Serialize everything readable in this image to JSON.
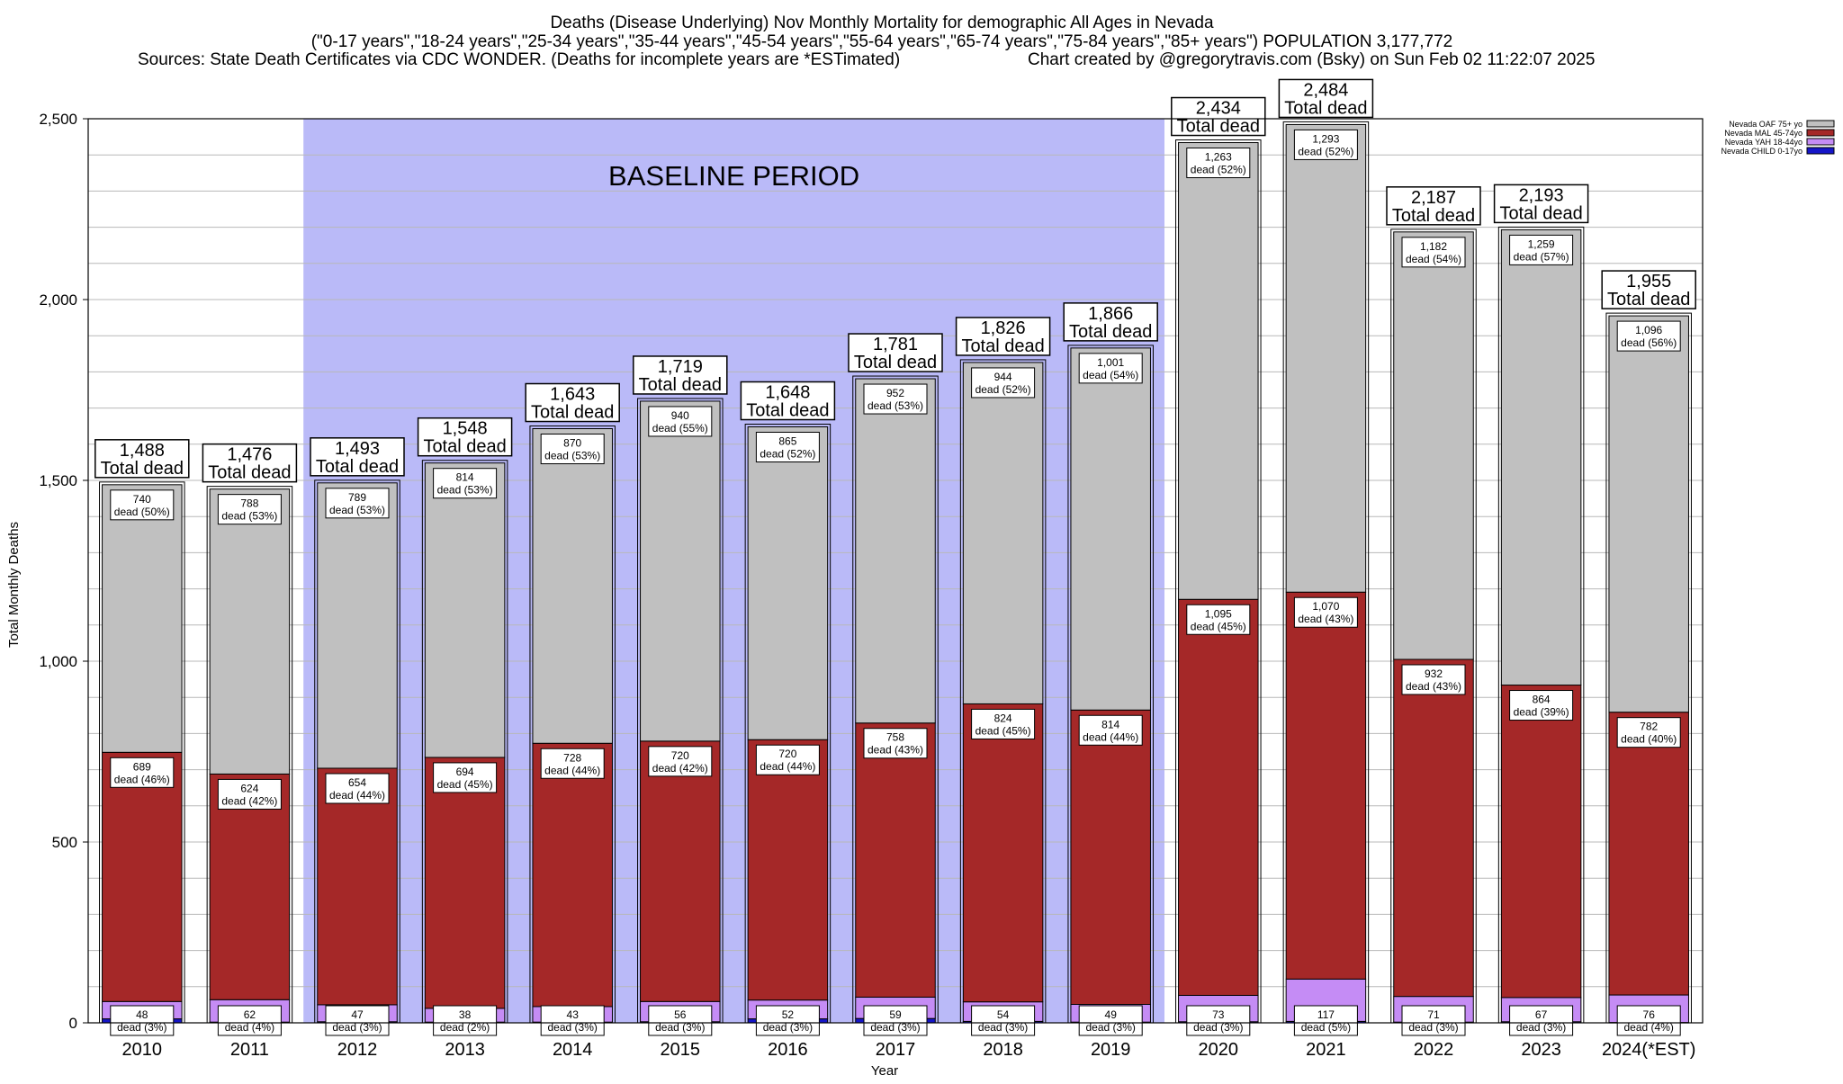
{
  "chart_data": {
    "type": "bar",
    "stacked": true,
    "title": "Deaths (Disease Underlying) Nov Monthly Mortality for demographic All Ages in Nevada",
    "subtitle": "(\"0-17 years\",\"18-24 years\",\"25-34 years\",\"35-44 years\",\"45-54 years\",\"55-64 years\",\"65-74 years\",\"75-84 years\",\"85+ years\") POPULATION 3,177,772",
    "sources": "Sources: State Death Certificates via CDC WONDER. (Deaths for incomplete years are *ESTimated)",
    "credit": "Chart created by @gregorytravis.com (Bsky) on Sun Feb 02 11:22:07 2025",
    "xlabel": "Year",
    "ylabel": "Total Monthly Deaths",
    "ylim": [
      0,
      2500
    ],
    "yticks": [
      0,
      500,
      1000,
      1500,
      2000,
      2500
    ],
    "ytick_labels": [
      "0",
      "500",
      "1,000",
      "1,500",
      "2,000",
      "2,500"
    ],
    "grid": true,
    "legend_position": "top-right",
    "baseline_label": "BASELINE PERIOD",
    "baseline_range": [
      "2012",
      "2019"
    ],
    "categories": [
      "2010",
      "2011",
      "2012",
      "2013",
      "2014",
      "2015",
      "2016",
      "2017",
      "2018",
      "2019",
      "2020",
      "2021",
      "2022",
      "2023",
      "2024(*EST)"
    ],
    "totals": [
      1488,
      1476,
      1493,
      1548,
      1643,
      1719,
      1648,
      1781,
      1826,
      1866,
      2434,
      2484,
      2187,
      2193,
      1955
    ],
    "totals_labels": [
      "1,488",
      "1,476",
      "1,493",
      "1,548",
      "1,643",
      "1,719",
      "1,648",
      "1,781",
      "1,826",
      "1,866",
      "2,434",
      "2,484",
      "2,187",
      "2,193",
      "1,955"
    ],
    "total_suffix": "Total dead",
    "series": [
      {
        "name": "Nevada CHILD 0-17yo",
        "color": "#1515c8",
        "values": [
          11,
          2,
          3,
          2,
          2,
          3,
          11,
          12,
          4,
          2,
          3,
          4,
          2,
          3,
          1
        ]
      },
      {
        "name": "Nevada YAH 18-44yo",
        "color": "#c58cf5",
        "values": [
          48,
          62,
          47,
          38,
          43,
          56,
          52,
          59,
          54,
          49,
          73,
          117,
          71,
          67,
          76
        ],
        "labels": [
          "48",
          "62",
          "47",
          "38",
          "43",
          "56",
          "52",
          "59",
          "54",
          "49",
          "73",
          "117",
          "71",
          "67",
          "76"
        ],
        "pct_labels": [
          "dead (3%)",
          "dead (4%)",
          "dead (3%)",
          "dead (2%)",
          "dead (3%)",
          "dead (3%)",
          "dead (3%)",
          "dead (3%)",
          "dead (3%)",
          "dead (3%)",
          "dead (3%)",
          "dead (5%)",
          "dead (3%)",
          "dead (3%)",
          "dead (4%)"
        ]
      },
      {
        "name": "Nevada MAL 45-74yo",
        "color": "#a52828",
        "values": [
          689,
          624,
          654,
          694,
          728,
          720,
          720,
          758,
          824,
          814,
          1095,
          1070,
          932,
          864,
          782
        ],
        "labels": [
          "689",
          "624",
          "654",
          "694",
          "728",
          "720",
          "720",
          "758",
          "824",
          "814",
          "1,095",
          "1,070",
          "932",
          "864",
          "782"
        ],
        "pct_labels": [
          "dead (46%)",
          "dead (42%)",
          "dead (44%)",
          "dead (45%)",
          "dead (44%)",
          "dead (42%)",
          "dead (44%)",
          "dead (43%)",
          "dead (45%)",
          "dead (44%)",
          "dead (45%)",
          "dead (43%)",
          "dead (43%)",
          "dead (39%)",
          "dead (40%)"
        ]
      },
      {
        "name": "Nevada OAF 75+ yo",
        "color": "#c0c0c0",
        "values": [
          740,
          788,
          789,
          814,
          870,
          940,
          865,
          952,
          944,
          1001,
          1263,
          1293,
          1182,
          1259,
          1096
        ],
        "labels": [
          "740",
          "788",
          "789",
          "814",
          "870",
          "940",
          "865",
          "952",
          "944",
          "1,001",
          "1,263",
          "1,293",
          "1,182",
          "1,259",
          "1,096"
        ],
        "pct_labels": [
          "dead (50%)",
          "dead (53%)",
          "dead (53%)",
          "dead (53%)",
          "dead (53%)",
          "dead (55%)",
          "dead (52%)",
          "dead (53%)",
          "dead (52%)",
          "dead (54%)",
          "dead (52%)",
          "dead (52%)",
          "dead (54%)",
          "dead (57%)",
          "dead (56%)"
        ]
      }
    ]
  }
}
